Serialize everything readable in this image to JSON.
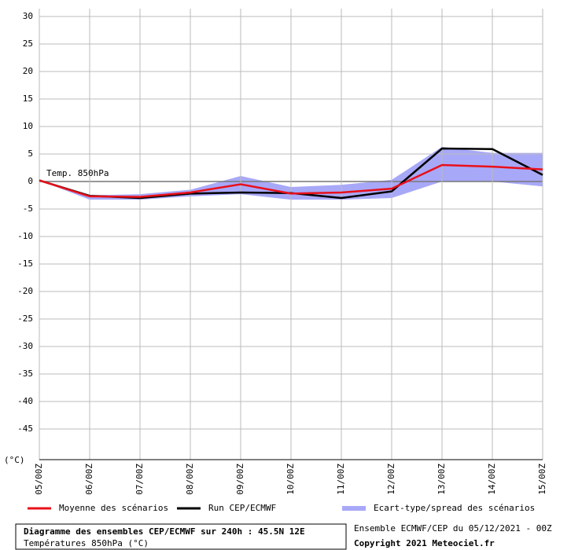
{
  "chart_data": {
    "type": "line",
    "title": "Diagramme des ensembles CEP/ECMWF sur 240h : 45.5N 12E",
    "subtitle": "Températures 850hPa (°C)",
    "run_info": "Ensemble ECMWF/CEP du 05/12/2021 - 00Z",
    "copyright": "Copyright 2021 Meteociel.fr",
    "annotation": "Temp. 850hPa",
    "y_unit": "(°C)",
    "categories": [
      "05/00Z",
      "06/00Z",
      "07/00Z",
      "08/00Z",
      "09/00Z",
      "10/00Z",
      "11/00Z",
      "12/00Z",
      "13/00Z",
      "14/00Z",
      "15/00Z"
    ],
    "band": {
      "name": "Ecart-type/spread des scénarios",
      "color": "#a8a8f8",
      "upper": [
        0.2,
        -2.5,
        -2.3,
        -1.5,
        1,
        -1,
        -0.6,
        0.3,
        6.3,
        5.2,
        5.2
      ],
      "lower": [
        0.2,
        -3.3,
        -3.3,
        -2.7,
        -2.3,
        -3.3,
        -3.3,
        -3,
        0,
        0,
        -0.9
      ]
    },
    "series": [
      {
        "name": "Moyenne des scénarios",
        "color": "#e8101a",
        "values": [
          0.2,
          -2.7,
          -2.8,
          -2,
          -0.5,
          -2.2,
          -2,
          -1.3,
          3,
          2.7,
          2.2
        ]
      },
      {
        "name": "Run CEP/ECMWF",
        "color": "#000000",
        "values": [
          0.2,
          -2.6,
          -3,
          -2.2,
          -2,
          -2.1,
          -3,
          -1.8,
          6,
          5.9,
          1.2
        ]
      }
    ],
    "ylim": [
      -50,
      30
    ],
    "yticks": [
      30,
      25,
      20,
      15,
      10,
      5,
      0,
      -5,
      -10,
      -15,
      -20,
      -25,
      -30,
      -35,
      -40,
      -45
    ],
    "grid": true
  }
}
